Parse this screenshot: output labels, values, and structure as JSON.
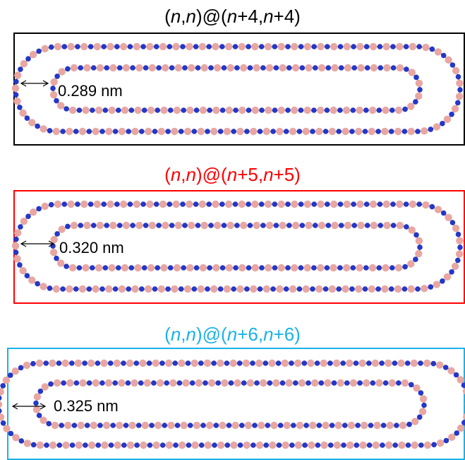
{
  "panels": [
    {
      "title_parts": [
        "(",
        "n",
        ",",
        "n",
        ")@(",
        "n",
        "+4,",
        "n",
        "+4)"
      ],
      "color": "#000000",
      "measurement": "0.289 nm"
    },
    {
      "title_parts": [
        "(",
        "n",
        ",",
        "n",
        ")@(",
        "n",
        "+5,",
        "n",
        "+5)"
      ],
      "color": "#ff0000",
      "measurement": "0.320 nm"
    },
    {
      "title_parts": [
        "(",
        "n",
        ",",
        "n",
        ")@(",
        "n",
        "+6,",
        "n",
        "+6)"
      ],
      "color": "#1ab2e6",
      "measurement": "0.325 nm"
    }
  ],
  "atom_colors": {
    "boron": "#e8a7a2",
    "nitrogen": "#2337c8",
    "bond": "#303030"
  }
}
